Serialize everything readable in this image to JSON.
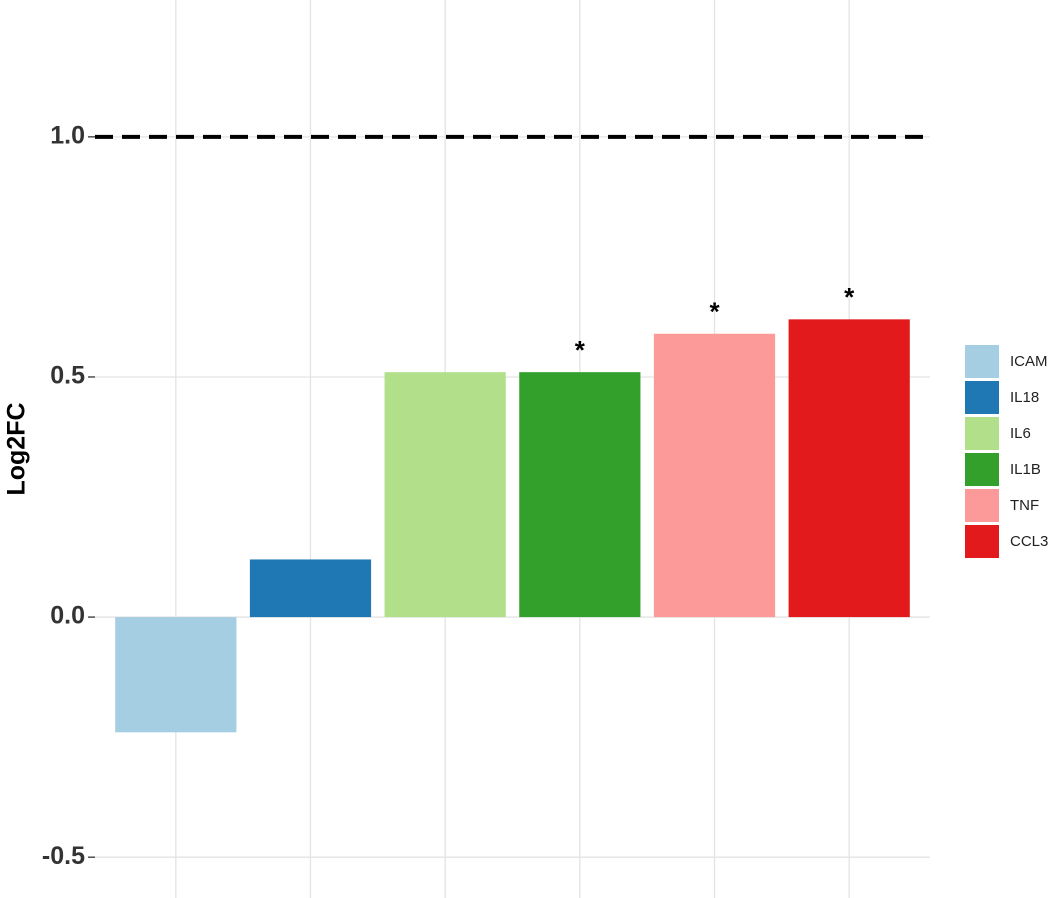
{
  "chart_data": {
    "type": "bar",
    "y_label": "Log2FC",
    "categories": [
      "ICAM",
      "IL18",
      "IL6",
      "IL1B",
      "TNF",
      "CCL3"
    ],
    "values": [
      -0.24,
      0.12,
      0.51,
      0.51,
      0.59,
      0.62
    ],
    "colors": [
      "#a6cee3",
      "#1f78b4",
      "#b2df8a",
      "#33a02c",
      "#fb9a99",
      "#e31a1c"
    ],
    "significant": [
      false,
      false,
      false,
      true,
      true,
      true
    ],
    "significance_label": "*",
    "hline": {
      "value": 1.0,
      "style": "dashed",
      "color": "#000000"
    },
    "ylim": [
      -0.585,
      1.285
    ],
    "yticks": [
      -0.5,
      {
        "value": 0,
        "label": "0.0"
      },
      0.5,
      {
        "value": 1,
        "label": "1.0"
      }
    ],
    "grid": true,
    "legend": "right"
  }
}
